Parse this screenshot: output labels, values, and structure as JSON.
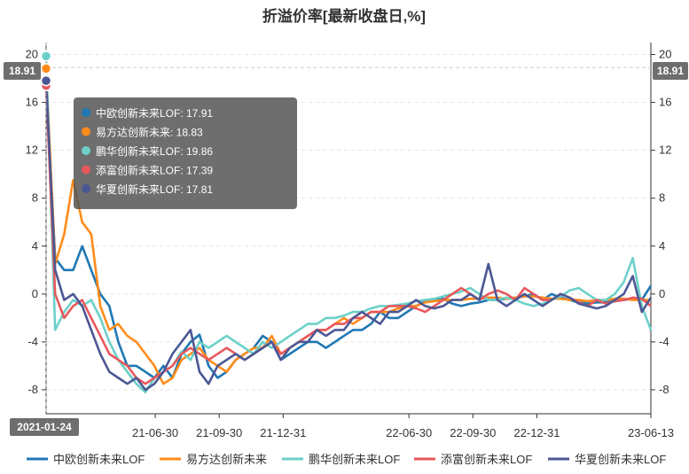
{
  "chart_data": {
    "type": "line",
    "title": "折溢价率[最新收盘日,%]",
    "xlabel": "",
    "ylabel": "",
    "ylim": [
      -10,
      21
    ],
    "yticks": [
      -8,
      -4,
      0,
      4,
      8,
      12,
      16,
      20
    ],
    "x_start": "2021-01-24",
    "x_end": "2023-06-13",
    "x_tick_labels": [
      "21-06-30",
      "21-09-30",
      "21-12-31",
      "22-06-30",
      "22-09-30",
      "22-12-31",
      "23-06-13"
    ],
    "cursor_label": "2021-01-24",
    "y_cursor_label": "18.91",
    "grid": true,
    "legend_position": "bottom",
    "series": [
      {
        "name": "中欧创新未来LOF",
        "color": "#1f77b4",
        "values": [
          17.91,
          3.0,
          2.0,
          2.0,
          4.0,
          2.0,
          0.0,
          -1.0,
          -4.0,
          -6.0,
          -6.0,
          -6.5,
          -7.0,
          -6.0,
          -7.0,
          -5.0,
          -4.0,
          -3.4,
          -6.0,
          -7.0,
          -6.5,
          -5.5,
          -5.0,
          -4.5,
          -3.5,
          -4.0,
          -5.5,
          -5.0,
          -4.5,
          -4.0,
          -4.0,
          -4.5,
          -4.0,
          -3.5,
          -3.0,
          -3.0,
          -2.5,
          -1.5,
          -2.0,
          -2.0,
          -1.5,
          -1.0,
          -0.6,
          -0.5,
          -0.4,
          -0.8,
          -1.0,
          -0.8,
          -0.7,
          -0.5,
          -0.5,
          -0.4,
          -0.3,
          -0.2,
          0.0,
          -0.5,
          0.0,
          -0.3,
          -0.5,
          -0.7,
          -0.8,
          -0.7,
          -0.7,
          -0.6,
          -0.5,
          -0.4,
          -0.5,
          0.7
        ]
      },
      {
        "name": "易方达创新未来",
        "color": "#ff8c1a",
        "values": [
          18.83,
          2.5,
          5.0,
          9.5,
          6.0,
          5.0,
          -1.0,
          -3.0,
          -2.5,
          -3.5,
          -4.0,
          -5.0,
          -6.0,
          -7.5,
          -7.0,
          -5.5,
          -5.0,
          -4.5,
          -5.5,
          -6.0,
          -6.5,
          -5.5,
          -5.0,
          -4.5,
          -4.5,
          -3.5,
          -5.0,
          -4.5,
          -4.0,
          -3.5,
          -3.0,
          -3.0,
          -2.5,
          -2.0,
          -2.5,
          -2.0,
          -1.5,
          -1.5,
          -1.5,
          -1.2,
          -1.0,
          -1.0,
          -0.7,
          -0.6,
          -0.5,
          -0.5,
          -0.5,
          -0.4,
          -0.4,
          -0.3,
          -0.3,
          -0.4,
          -0.3,
          -0.2,
          -0.2,
          -0.3,
          -0.4,
          -0.4,
          -0.5,
          -0.5,
          -0.6,
          -0.5,
          -0.5,
          -0.4,
          -0.4,
          -0.5,
          -0.5,
          -0.5
        ]
      },
      {
        "name": "鹏华创新未来LOF",
        "color": "#6cd0c9",
        "values": [
          19.86,
          -3.0,
          -1.5,
          -0.5,
          -1.0,
          -0.5,
          -2.0,
          -4.0,
          -5.5,
          -6.5,
          -7.5,
          -8.2,
          -7.0,
          -6.5,
          -6.0,
          -4.8,
          -5.5,
          -4.0,
          -4.5,
          -4.0,
          -3.5,
          -4.0,
          -4.5,
          -5.0,
          -4.0,
          -4.5,
          -4.0,
          -3.5,
          -3.0,
          -2.5,
          -2.5,
          -2.0,
          -2.0,
          -1.8,
          -1.5,
          -1.5,
          -1.2,
          -1.0,
          -1.0,
          -0.9,
          -0.8,
          -0.6,
          -0.5,
          -0.4,
          -0.2,
          0.0,
          0.2,
          0.5,
          0.0,
          -0.5,
          -0.5,
          -0.3,
          -0.5,
          -0.8,
          -1.0,
          -0.8,
          -0.5,
          -0.2,
          0.3,
          0.5,
          0.0,
          -0.5,
          -0.5,
          0.0,
          1.0,
          3.0,
          -1.0,
          -3.0
        ]
      },
      {
        "name": "添富创新未来LOF",
        "color": "#e8575c",
        "values": [
          17.39,
          0.0,
          -2.0,
          -1.0,
          -0.5,
          -2.0,
          -3.5,
          -5.0,
          -5.5,
          -6.0,
          -7.0,
          -7.5,
          -7.0,
          -6.5,
          -6.0,
          -5.0,
          -4.5,
          -5.0,
          -5.5,
          -5.0,
          -4.5,
          -5.0,
          -5.5,
          -5.0,
          -4.5,
          -4.0,
          -5.0,
          -4.5,
          -4.0,
          -3.5,
          -3.0,
          -3.0,
          -2.5,
          -2.5,
          -2.0,
          -2.0,
          -1.5,
          -1.5,
          -1.0,
          -1.0,
          -1.0,
          -1.2,
          -1.5,
          -1.0,
          -0.5,
          0.0,
          0.5,
          0.0,
          -0.5,
          0.0,
          0.3,
          0.0,
          -0.5,
          0.5,
          0.0,
          -0.5,
          -0.5,
          0.0,
          -0.3,
          -0.7,
          -1.0,
          -0.5,
          -0.8,
          -0.6,
          -0.5,
          -0.3,
          -0.4,
          -1.0
        ]
      },
      {
        "name": "华夏创新未来LOF",
        "color": "#4b5794",
        "values": [
          17.81,
          2.0,
          -0.5,
          0.0,
          -1.0,
          -3.0,
          -5.0,
          -6.5,
          -7.0,
          -7.5,
          -7.0,
          -8.0,
          -7.5,
          -6.5,
          -5.0,
          -4.0,
          -3.0,
          -6.5,
          -7.5,
          -6.0,
          -5.5,
          -5.0,
          -5.5,
          -5.0,
          -4.5,
          -4.0,
          -5.5,
          -4.5,
          -4.0,
          -4.0,
          -3.0,
          -3.5,
          -3.0,
          -3.0,
          -2.0,
          -1.5,
          -2.0,
          -2.5,
          -1.5,
          -1.5,
          -1.0,
          -0.5,
          -1.0,
          -1.2,
          -1.0,
          -0.5,
          -0.5,
          0.0,
          -0.5,
          2.5,
          -0.5,
          -1.0,
          -0.5,
          0.0,
          -0.5,
          -1.0,
          -0.5,
          0.0,
          -0.3,
          -0.8,
          -1.0,
          -1.2,
          -1.0,
          -0.5,
          0.0,
          1.5,
          -1.5,
          -0.3
        ]
      }
    ]
  }
}
